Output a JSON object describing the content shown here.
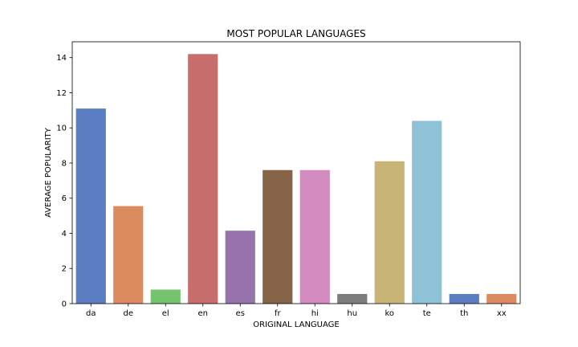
{
  "chart_data": {
    "type": "bar",
    "title": "MOST POPULAR LANGUAGES",
    "xlabel": "ORIGINAL LANGUAGE",
    "ylabel": "AVERAGE POPULARITY",
    "categories": [
      "da",
      "de",
      "el",
      "en",
      "es",
      "fr",
      "hi",
      "hu",
      "ko",
      "te",
      "th",
      "xx"
    ],
    "values": [
      11.1,
      5.55,
      0.8,
      14.2,
      4.15,
      7.6,
      7.6,
      0.55,
      8.1,
      10.4,
      0.55,
      0.55
    ],
    "ylim": [
      0,
      14.9
    ],
    "yticks": [
      0,
      2,
      4,
      6,
      8,
      10,
      12,
      14
    ],
    "grid": false,
    "colors": [
      "#5b7ec3",
      "#dc8b5e",
      "#76c36f",
      "#c76e6d",
      "#9673ab",
      "#866447",
      "#d38abf",
      "#7d7d7d",
      "#c8b474",
      "#8fc1d7",
      "#5b7ec3",
      "#dc8b5e"
    ]
  }
}
